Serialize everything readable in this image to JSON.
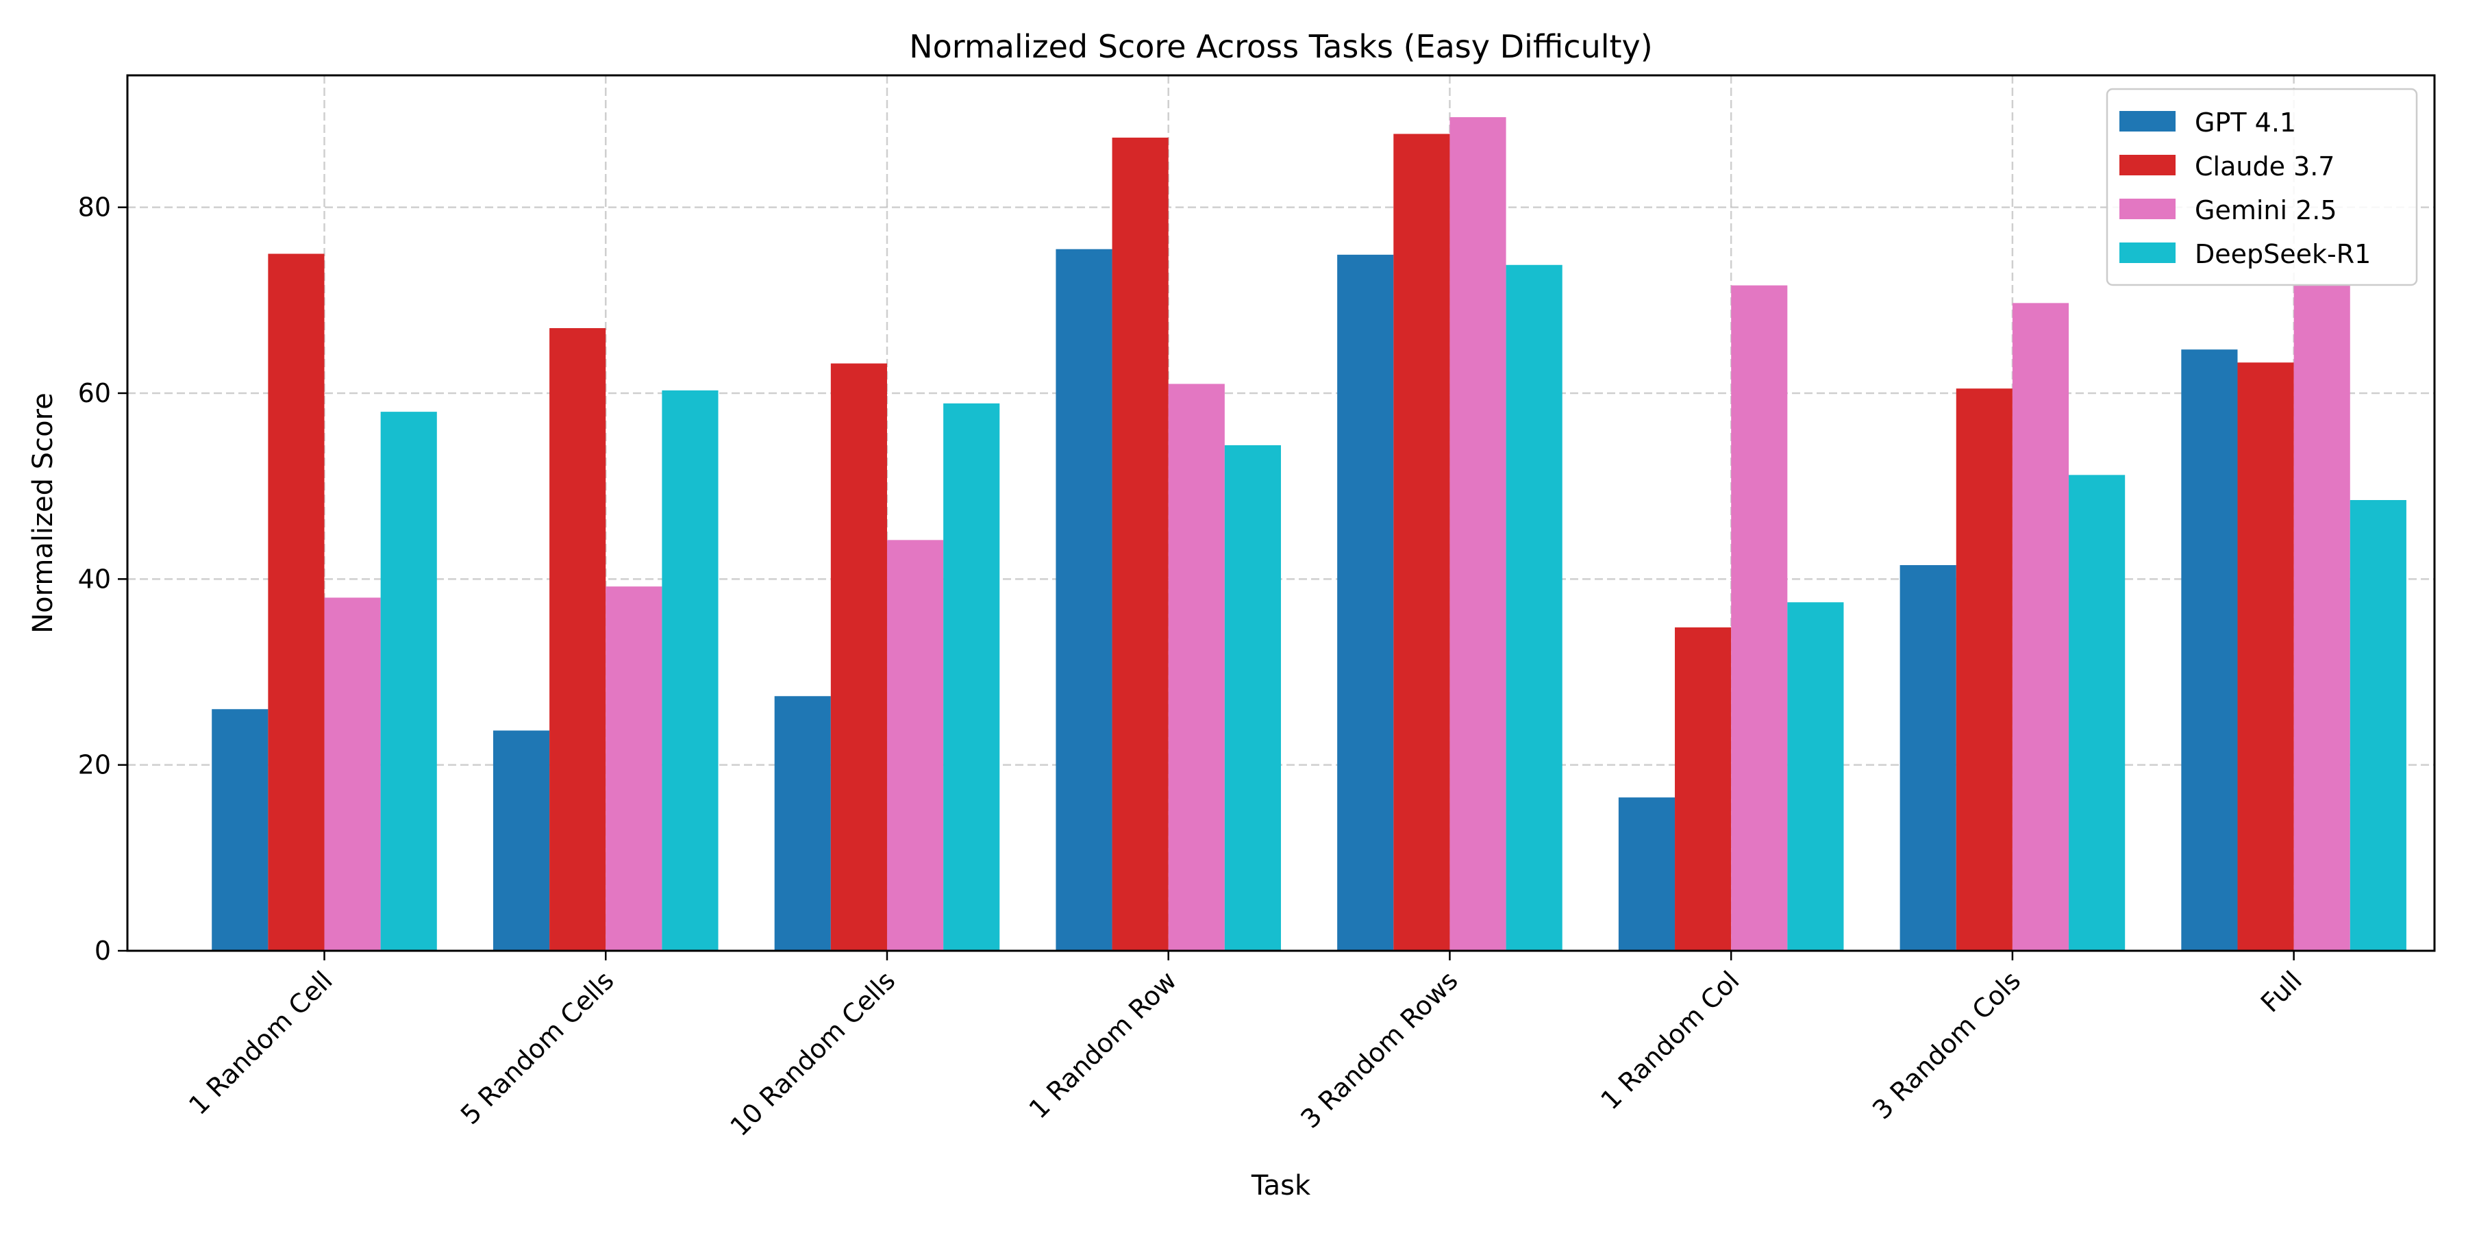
{
  "chart_data": {
    "type": "bar",
    "title": "Normalized Score Across Tasks (Easy Difficulty)",
    "xlabel": "Task",
    "ylabel": "Normalized Score",
    "categories": [
      "1 Random Cell",
      "5 Random Cells",
      "10 Random Cells",
      "1 Random Row",
      "3 Random Rows",
      "1 Random Col",
      "3 Random Cols",
      "Full"
    ],
    "series": [
      {
        "name": "GPT 4.1",
        "color": "#1f77b4",
        "values": [
          26.0,
          23.7,
          27.4,
          75.5,
          74.9,
          16.5,
          41.5,
          64.7
        ]
      },
      {
        "name": "Claude 3.7",
        "color": "#d62728",
        "values": [
          75.0,
          67.0,
          63.2,
          87.5,
          87.9,
          34.8,
          60.5,
          63.3
        ]
      },
      {
        "name": "Gemini 2.5",
        "color": "#e377c2",
        "values": [
          38.0,
          39.2,
          44.2,
          61.0,
          89.7,
          71.6,
          69.7,
          71.6
        ]
      },
      {
        "name": "DeepSeek-R1",
        "color": "#17becf",
        "values": [
          58.0,
          60.3,
          58.9,
          54.4,
          73.8,
          37.5,
          51.2,
          48.5
        ]
      }
    ],
    "ylim": [
      0,
      94.2
    ],
    "yticks": [
      0,
      20,
      40,
      60,
      80
    ],
    "grid": true,
    "legend_position": "top-right"
  }
}
